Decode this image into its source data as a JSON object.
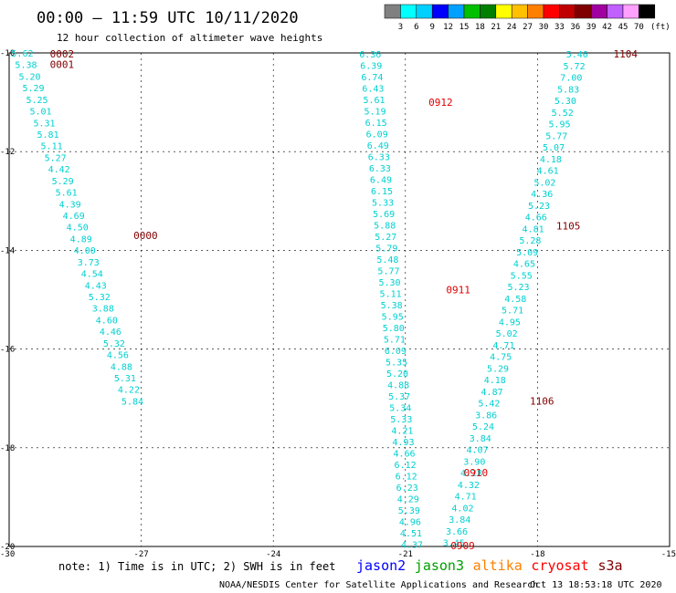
{
  "header": {
    "title": "00:00 – 11:59 UTC 10/11/2020",
    "subtitle": "12 hour collection of altimeter wave heights"
  },
  "scale": {
    "colors": [
      "#808080",
      "#00ffff",
      "#00d0ff",
      "#0000ff",
      "#00a0ff",
      "#00c000",
      "#008000",
      "#ffff00",
      "#ffc000",
      "#ff8000",
      "#ff0000",
      "#c00000",
      "#800000",
      "#a000a0",
      "#c060ff",
      "#ffa0ff",
      "#000000"
    ],
    "ticks": [
      "3",
      "6",
      "9",
      "12",
      "15",
      "18",
      "21",
      "24",
      "27",
      "30",
      "33",
      "36",
      "39",
      "42",
      "45",
      "70"
    ],
    "unit": "(ft)"
  },
  "axes": {
    "x_ticks": [
      {
        "value": -30,
        "label": "-30"
      },
      {
        "value": -27,
        "label": "-27"
      },
      {
        "value": -24,
        "label": "-24"
      },
      {
        "value": -21,
        "label": "-21"
      },
      {
        "value": -18,
        "label": "-18"
      },
      {
        "value": -15,
        "label": "-15"
      }
    ],
    "y_ticks": [
      {
        "value": -10,
        "label": "-10"
      },
      {
        "value": -12,
        "label": "-12"
      },
      {
        "value": -14,
        "label": "-14"
      },
      {
        "value": -16,
        "label": "-16"
      },
      {
        "value": -18,
        "label": "-18"
      },
      {
        "value": -20,
        "label": "-20"
      }
    ]
  },
  "chart_data": {
    "type": "scatter",
    "title": "00:00 – 11:59 UTC 10/11/2020",
    "xlim": [
      -30,
      -15
    ],
    "ylim": [
      -20,
      -10
    ],
    "grid": true,
    "value_color": "#00d0d0",
    "tracks": [
      {
        "name": "track-1",
        "values": [
          "5.62",
          "5.38",
          "5.20",
          "5.29",
          "5.25",
          "5.01",
          "5.31",
          "5.81",
          "5.11",
          "5.27",
          "4.42",
          "5.29",
          "5.61",
          "4.39",
          "4.69",
          "4.50",
          "4.89",
          "4.00",
          "3.73",
          "4.54",
          "4.43",
          "5.32",
          "3.88",
          "4.60",
          "4.46",
          "5.32",
          "4.56",
          "4.88",
          "5.31",
          "4.22",
          "5.84"
        ],
        "lon_start": -29.7,
        "lon_end": -27.2,
        "lat_start": -10.0,
        "lat_end": -17.05
      },
      {
        "name": "track-2",
        "values": [
          "6.36",
          "6.39",
          "6.74",
          "6.43",
          "5.61",
          "5.19",
          "6.15",
          "6.09",
          "6.49",
          "6.33",
          "6.33",
          "6.49",
          "6.15",
          "5.33",
          "5.69",
          "5.88",
          "5.27",
          "5.79",
          "5.48",
          "5.77",
          "5.30",
          "5.11",
          "5.38",
          "5.95",
          "5.80",
          "5.71",
          "6.09",
          "5.35",
          "5.20",
          "4.88",
          "5.37",
          "5.34",
          "5.33",
          "4.21",
          "4.93",
          "4.66",
          "6.12",
          "6.12",
          "6.23",
          "4.29",
          "5.39",
          "4.96",
          "4.51",
          "4.37"
        ],
        "lon_start": -21.8,
        "lon_end": -20.85,
        "lat_start": -10.02,
        "lat_end": -19.95
      },
      {
        "name": "track-3",
        "values": [
          "5.46",
          "5.72",
          "7.00",
          "5.83",
          "5.30",
          "5.52",
          "5.95",
          "5.77",
          "5.07",
          "4.18",
          "4.61",
          "5.02",
          "4.36",
          "5.23",
          "4.66",
          "4.81",
          "5.28",
          "5.09",
          "4.65",
          "5.55",
          "5.23",
          "4.58",
          "5.71",
          "4.95",
          "5.02",
          "4.71",
          "4.75",
          "5.29",
          "4.18",
          "4.87",
          "5.42",
          "3.86",
          "5.24",
          "3.84",
          "4.07",
          "3.90",
          "4.28",
          "4.32",
          "4.71",
          "4.02",
          "3.84",
          "3.66",
          "3.45"
        ],
        "lon_start": -17.1,
        "lon_end": -19.9,
        "lat_start": -10.02,
        "lat_end": -19.92
      }
    ],
    "time_labels": [
      {
        "text": "0002",
        "lon": -28.8,
        "lat": -10.02,
        "color": "#800000"
      },
      {
        "text": "0001",
        "lon": -28.8,
        "lat": -10.23,
        "color": "#800000"
      },
      {
        "text": "0000",
        "lon": -26.9,
        "lat": -13.7,
        "color": "#800000"
      },
      {
        "text": "0912",
        "lon": -20.2,
        "lat": -11.0,
        "color": "#e00000"
      },
      {
        "text": "0911",
        "lon": -19.8,
        "lat": -14.8,
        "color": "#e00000"
      },
      {
        "text": "0910",
        "lon": -19.4,
        "lat": -18.5,
        "color": "#e00000"
      },
      {
        "text": "0909",
        "lon": -19.7,
        "lat": -19.98,
        "color": "#e00000"
      },
      {
        "text": "1104",
        "lon": -16.0,
        "lat": -10.02,
        "color": "#800000"
      },
      {
        "text": "1105",
        "lon": -17.3,
        "lat": -13.5,
        "color": "#800000"
      },
      {
        "text": "1106",
        "lon": -17.9,
        "lat": -17.05,
        "color": "#800000"
      }
    ]
  },
  "footer": {
    "note": "note: 1) Time is in UTC; 2) SWH is in feet",
    "satellites": [
      {
        "name": "jason2",
        "color": "#0000ff"
      },
      {
        "name": "jason3",
        "color": "#00a000"
      },
      {
        "name": "altika",
        "color": "#ff8000"
      },
      {
        "name": "cryosat",
        "color": "#ff0000"
      },
      {
        "name": "s3a",
        "color": "#800000"
      }
    ],
    "credit": "NOAA/NESDIS Center for Satellite Applications and Research",
    "timestamp": "Oct 13 18:53:18 UTC 2020"
  }
}
